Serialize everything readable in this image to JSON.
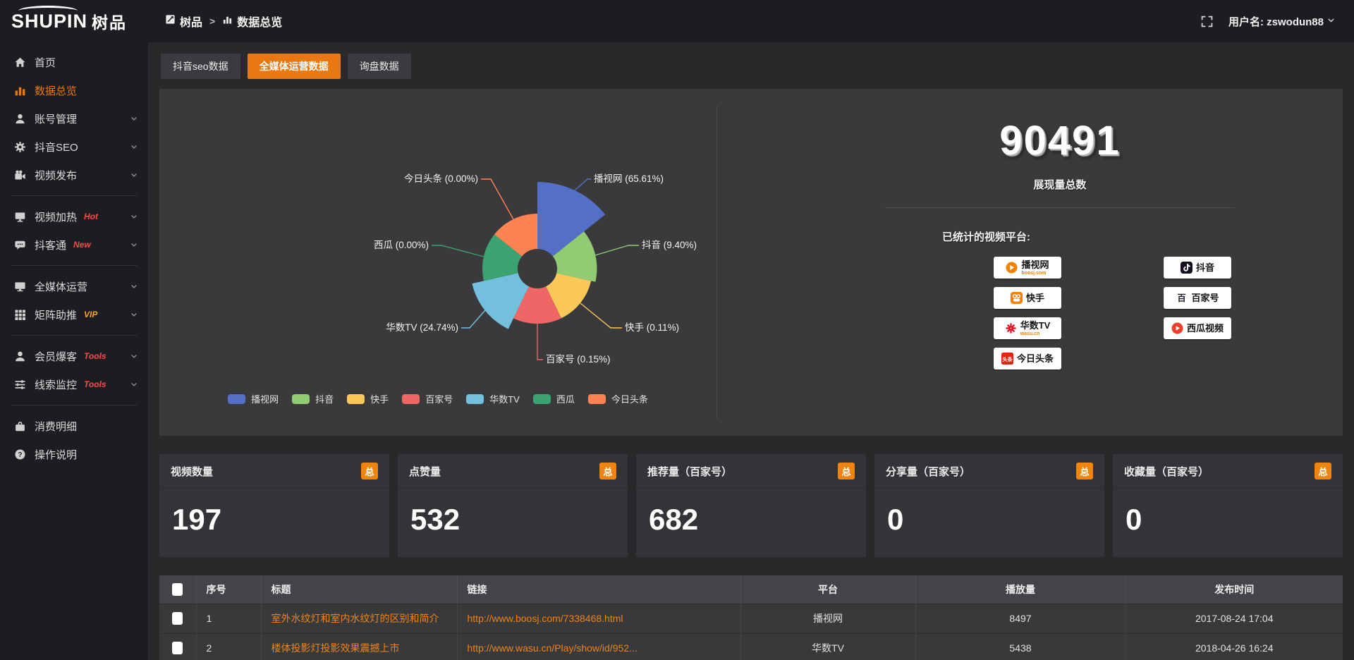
{
  "brand": {
    "name": "SHUPIN",
    "suffix": "树品"
  },
  "topbar": {
    "breadcrumb": [
      {
        "label": "树品"
      },
      {
        "label": "数据总览"
      }
    ],
    "separator": ">",
    "username": "用户名: zswodun88"
  },
  "sidebar": {
    "items": [
      {
        "label": "首页",
        "icon": "home"
      },
      {
        "label": "数据总览",
        "icon": "bar-chart",
        "active": true
      },
      {
        "label": "账号管理",
        "icon": "user",
        "chevron": true
      },
      {
        "label": "抖音SEO",
        "icon": "gear",
        "chevron": true
      },
      {
        "label": "视频发布",
        "icon": "video",
        "chevron": true,
        "divider_after": true
      },
      {
        "label": "视频加热",
        "icon": "screen",
        "badge": "Hot",
        "badge_color": "#ff4a4a",
        "chevron": true
      },
      {
        "label": "抖客通",
        "icon": "chat",
        "badge": "New",
        "badge_color": "#ff4a4a",
        "chevron": true,
        "divider_after": true
      },
      {
        "label": "全媒体运营",
        "icon": "monitor",
        "chevron": true
      },
      {
        "label": "矩阵助推",
        "icon": "grid",
        "badge": "VIP",
        "badge_color": "#f0a42c",
        "chevron": true,
        "divider_after": true
      },
      {
        "label": "会员爆客",
        "icon": "user-solid",
        "badge": "Tools",
        "badge_color": "#ff4a4a",
        "chevron": true
      },
      {
        "label": "线索监控",
        "icon": "sliders",
        "badge": "Tools",
        "badge_color": "#ff4a4a",
        "chevron": true,
        "divider_after": true
      },
      {
        "label": "消费明细",
        "icon": "wallet"
      },
      {
        "label": "操作说明",
        "icon": "question"
      }
    ]
  },
  "tabs": [
    {
      "label": "抖音seo数据"
    },
    {
      "label": "全媒体运营数据",
      "active": true
    },
    {
      "label": "询盘数据"
    }
  ],
  "chart_data": {
    "type": "pie",
    "variant": "nightingale_rose",
    "series": [
      {
        "name": "播视网",
        "percent": 65.61
      },
      {
        "name": "抖音",
        "percent": 9.4
      },
      {
        "name": "快手",
        "percent": 0.11
      },
      {
        "name": "百家号",
        "percent": 0.15
      },
      {
        "name": "华数TV",
        "percent": 24.74
      },
      {
        "name": "西瓜",
        "percent": 0.0
      },
      {
        "name": "今日头条",
        "percent": 0.0
      }
    ],
    "colors": [
      "#5470c6",
      "#91cc75",
      "#fac858",
      "#ee6666",
      "#73c0de",
      "#3ba272",
      "#fc8452"
    ],
    "legend": [
      "播视网",
      "抖音",
      "快手",
      "百家号",
      "华数TV",
      "西瓜",
      "今日头条"
    ],
    "legend_position": "bottom"
  },
  "summary": {
    "value": "90491",
    "label": "展现量总数"
  },
  "platforms": {
    "title": "已统计的视频平台:",
    "left": [
      {
        "name": "播视网",
        "sub": "boosj.com",
        "logo": "boosj"
      },
      {
        "name": "快手",
        "logo": "kuaishou"
      },
      {
        "name": "华数TV",
        "sub": "wasu.cn",
        "logo": "wasu"
      },
      {
        "name": "今日头条",
        "logo": "toutiao"
      }
    ],
    "right": [
      {
        "name": "抖音",
        "logo": "douyin"
      },
      {
        "name": "百家号",
        "logo": "baijia"
      },
      {
        "name": "西瓜视频",
        "logo": "xigua"
      }
    ]
  },
  "stat_cards": [
    {
      "label": "视频数量",
      "badge": "总",
      "value": "197"
    },
    {
      "label": "点赞量",
      "badge": "总",
      "value": "532"
    },
    {
      "label": "推荐量（百家号）",
      "badge": "总",
      "value": "682"
    },
    {
      "label": "分享量（百家号）",
      "badge": "总",
      "value": "0"
    },
    {
      "label": "收藏量（百家号）",
      "badge": "总",
      "value": "0"
    }
  ],
  "table": {
    "headers": [
      "序号",
      "标题",
      "链接",
      "平台",
      "播放量",
      "发布时间"
    ],
    "rows": [
      {
        "index": "1",
        "title": "室外水纹灯和室内水纹灯的区别和简介",
        "link": "http://www.boosj.com/7338468.html",
        "platform": "播视网",
        "views": "8497",
        "time": "2017-08-24 17:04"
      },
      {
        "index": "2",
        "title": "楼体投影灯投影效果震撼上市",
        "link": "http://www.wasu.cn/Play/show/id/952...",
        "platform": "华数TV",
        "views": "5438",
        "time": "2018-04-26 16:24"
      }
    ]
  },
  "accent_color": "#e8780f"
}
